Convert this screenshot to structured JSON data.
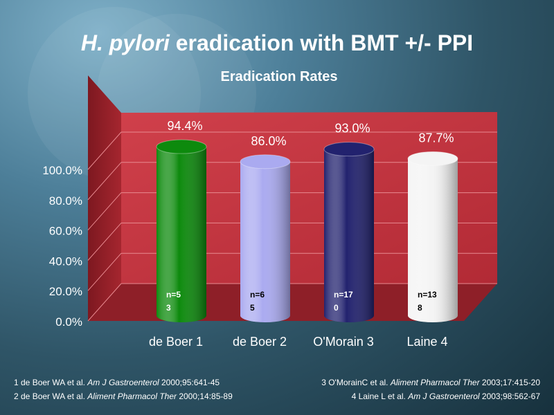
{
  "title": {
    "italic": "H. pylori",
    "rest": " eradication with BMT +/- PPI"
  },
  "chart_data": {
    "type": "bar",
    "title": "Eradication Rates",
    "categories": [
      "de Boer 1",
      "de Boer 2",
      "O'Morain 3",
      "Laine 4"
    ],
    "values": [
      94.4,
      86.0,
      93.0,
      87.7
    ],
    "value_labels": [
      "94.4%",
      "86.0%",
      "93.0%",
      "87.7%"
    ],
    "n_labels": [
      [
        "n=5",
        "3"
      ],
      [
        "n=6",
        "5"
      ],
      [
        "n=17",
        "0"
      ],
      [
        "n=13",
        "8"
      ]
    ],
    "yticks": [
      "0.0%",
      "20.0%",
      "40.0%",
      "60.0%",
      "80.0%",
      "100.0%"
    ],
    "ylim": [
      0,
      100
    ],
    "grid": true,
    "style": "3d-cylinder",
    "colors": {
      "wall": "#c1353f",
      "floor": "#8e1f28",
      "bars": [
        "#0d8a0d",
        "#aaaaf0",
        "#22226e",
        "#f4f4f4"
      ]
    }
  },
  "references": {
    "left": [
      {
        "pre": "1 de Boer WA et al. ",
        "journal": "Am J Gastroenterol",
        "post": " 2000;95:641-45"
      },
      {
        "pre": "2 de Boer WA et al. ",
        "journal": "Aliment Pharmacol Ther",
        "post": " 2000;14:85-89"
      }
    ],
    "right": [
      {
        "pre": "3 O'MorainC et al. ",
        "journal": "Aliment Pharmacol Ther",
        "post": " 2003;17:415-20"
      },
      {
        "pre": "4 Laine L et al. ",
        "journal": "Am J Gastroenterol",
        "post": " 2003;98:562-67"
      }
    ]
  }
}
